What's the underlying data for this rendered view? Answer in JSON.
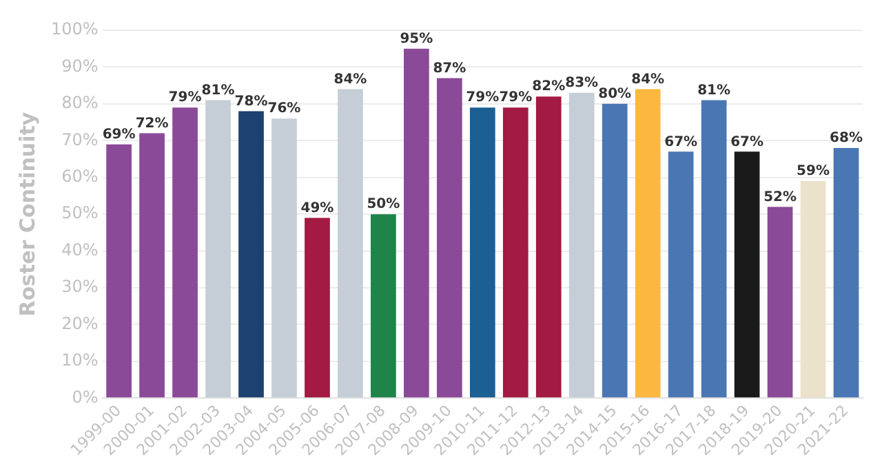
{
  "chart_data": {
    "type": "bar",
    "ylabel": "Roster Continuity",
    "categories": [
      "1999-00",
      "2000-01",
      "2001-02",
      "2002-03",
      "2003-04",
      "2004-05",
      "2005-06",
      "2006-07",
      "2007-08",
      "2008-09",
      "2009-10",
      "2010-11",
      "2011-12",
      "2012-13",
      "2013-14",
      "2014-15",
      "2015-16",
      "2016-17",
      "2017-18",
      "2018-19",
      "2019-20",
      "2020-21",
      "2021-22"
    ],
    "values": [
      69,
      72,
      79,
      81,
      78,
      76,
      49,
      84,
      50,
      95,
      87,
      79,
      79,
      82,
      83,
      80,
      84,
      67,
      81,
      67,
      52,
      59,
      68
    ],
    "value_labels": [
      "69%",
      "72%",
      "79%",
      "81%",
      "78%",
      "76%",
      "49%",
      "84%",
      "50%",
      "95%",
      "87%",
      "79%",
      "79%",
      "82%",
      "83%",
      "80%",
      "84%",
      "67%",
      "81%",
      "67%",
      "52%",
      "59%",
      "68%"
    ],
    "colors": [
      "#8b4a97",
      "#8b4a97",
      "#8b4a97",
      "#c5ced6",
      "#1d4170",
      "#c5ced6",
      "#a31a42",
      "#c5ced6",
      "#1e8449",
      "#8b4a97",
      "#8b4a97",
      "#1b5f93",
      "#a31a42",
      "#a31a42",
      "#c5ced6",
      "#4a77b4",
      "#fbb740",
      "#4a77b4",
      "#4a77b4",
      "#1a1a1a",
      "#8b4a97",
      "#ece2cc",
      "#4a77b4"
    ],
    "ylim": [
      0,
      100
    ],
    "yticks": [
      {
        "value": 0,
        "label": "0%"
      },
      {
        "value": 10,
        "label": "10%"
      },
      {
        "value": 20,
        "label": "20%"
      },
      {
        "value": 30,
        "label": "30%"
      },
      {
        "value": 40,
        "label": "40%"
      },
      {
        "value": 50,
        "label": "50%"
      },
      {
        "value": 60,
        "label": "60%"
      },
      {
        "value": 70,
        "label": "70%"
      },
      {
        "value": 80,
        "label": "80%"
      },
      {
        "value": 90,
        "label": "90%"
      },
      {
        "value": 100,
        "label": "100%"
      }
    ],
    "grid": "y"
  }
}
